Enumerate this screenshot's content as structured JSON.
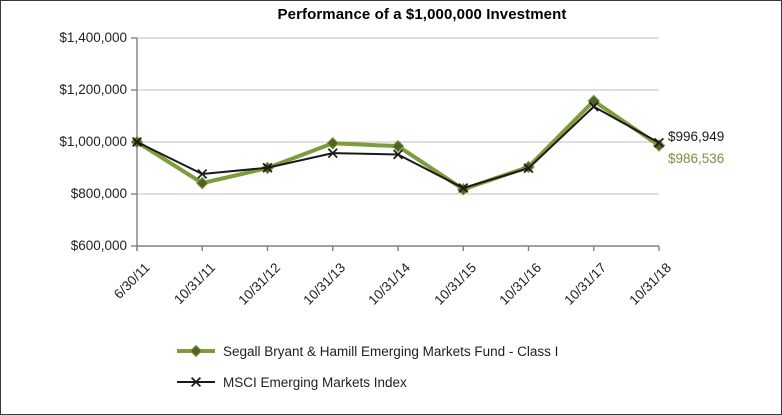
{
  "chart_data": {
    "type": "line",
    "title": "Performance of a $1,000,000 Investment",
    "categories": [
      "6/30/11",
      "10/31/11",
      "10/31/12",
      "10/31/13",
      "10/31/14",
      "10/31/15",
      "10/31/16",
      "10/31/17",
      "10/31/18"
    ],
    "series": [
      {
        "name": "Segall Bryant & Hamill Emerging Markets Fund - Class I",
        "marker": "diamond",
        "line_color": "#7E9C3B",
        "marker_color": "#4F6228",
        "line_width": 4,
        "values": [
          1000000,
          842000,
          900000,
          995000,
          984000,
          818000,
          904000,
          1158000,
          986536
        ]
      },
      {
        "name": "MSCI Emerging Markets Index",
        "marker": "x",
        "line_color": "#1A1A1A",
        "marker_color": "#1A1A1A",
        "line_width": 2,
        "values": [
          1000000,
          877000,
          901000,
          957000,
          952000,
          823000,
          899000,
          1136000,
          996949
        ]
      }
    ],
    "y_axis": {
      "tick_labels": [
        "$600,000",
        "$800,000",
        "$1,000,000",
        "$1,200,000",
        "$1,400,000"
      ],
      "tick_values": [
        600000,
        800000,
        1000000,
        1200000,
        1400000
      ],
      "min": 600000,
      "max": 1400000
    },
    "grid": true,
    "gridline_color": "#BFBFBF",
    "axis_color": "#808080",
    "legend_position": "bottom-left",
    "end_labels": [
      {
        "text": "$996,949",
        "color": "#1A1A1A",
        "series": "MSCI Emerging Markets Index"
      },
      {
        "text": "$986,536",
        "color": "#77933C",
        "series": "Segall Bryant & Hamill Emerging Markets Fund - Class I"
      }
    ]
  }
}
